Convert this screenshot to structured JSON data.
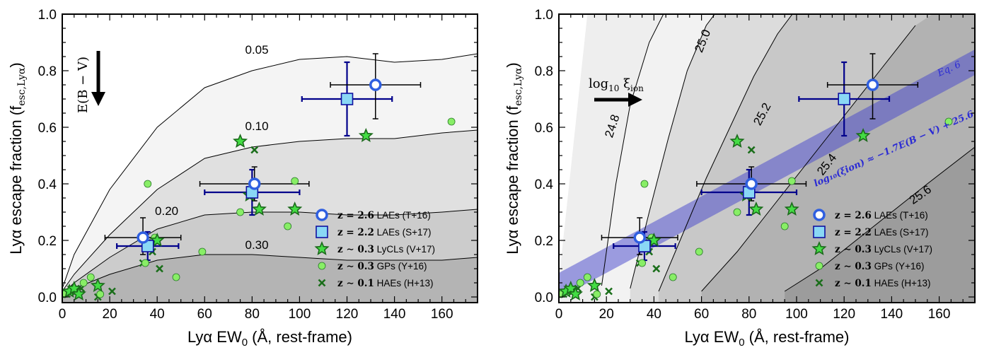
{
  "colors": {
    "laes_t16": "#2f5fe0",
    "laes_s17_fill": "#8ad8f5",
    "laes_s17_edge": "#1010a0",
    "lycl": "#44dd44",
    "gp": "#88ee66",
    "hae": "#1a6e1a",
    "band": "#4444cc",
    "band_text": "#2a2ad4",
    "err_t16": "#000000",
    "err_s17": "#00008b"
  },
  "chart_data": [
    {
      "type": "scatter",
      "panel": "left",
      "xlabel": "Lyα EW",
      "xlabel_sub": "0",
      "xlabel_suffix": " (Å, rest-frame)",
      "ylabel": "Lyα escape fraction (f",
      "ylabel_sub": "esc,Lyα",
      "ylabel_suffix": ")",
      "xlim": [
        0,
        175
      ],
      "ylim": [
        -0.02,
        1.0
      ],
      "xticks": [
        "0",
        "20",
        "40",
        "60",
        "80",
        "100",
        "120",
        "140",
        "160"
      ],
      "yticks": [
        "0.0",
        "0.2",
        "0.4",
        "0.6",
        "0.8",
        "1.0"
      ],
      "annotation": "E(B − V)",
      "contours": [
        {
          "label": "0.05",
          "x": [
            0,
            5,
            20,
            40,
            60,
            80,
            100,
            120,
            140,
            160,
            175
          ],
          "y": [
            0.03,
            0.15,
            0.38,
            0.6,
            0.74,
            0.8,
            0.84,
            0.85,
            0.83,
            0.84,
            0.86
          ]
        },
        {
          "label": "0.10",
          "x": [
            0,
            5,
            20,
            40,
            60,
            80,
            100,
            120,
            140,
            160,
            175
          ],
          "y": [
            0.02,
            0.08,
            0.22,
            0.38,
            0.49,
            0.53,
            0.55,
            0.56,
            0.56,
            0.58,
            0.59
          ]
        },
        {
          "label": "0.20",
          "x": [
            0,
            5,
            20,
            40,
            60,
            80,
            100,
            120,
            140,
            160,
            175
          ],
          "y": [
            0.01,
            0.05,
            0.14,
            0.24,
            0.29,
            0.3,
            0.3,
            0.29,
            0.29,
            0.3,
            0.31
          ]
        },
        {
          "label": "0.30",
          "x": [
            0,
            5,
            20,
            40,
            60,
            80,
            100,
            120,
            140,
            160,
            175
          ],
          "y": [
            0.005,
            0.03,
            0.08,
            0.13,
            0.15,
            0.15,
            0.14,
            0.13,
            0.13,
            0.13,
            0.14
          ]
        }
      ],
      "contour_labels": [
        {
          "text": "0.05",
          "x": 82,
          "y": 0.86
        },
        {
          "text": "0.10",
          "x": 82,
          "y": 0.59
        },
        {
          "text": "0.20",
          "x": 44,
          "y": 0.29
        },
        {
          "text": "0.30",
          "x": 82,
          "y": 0.17
        }
      ]
    },
    {
      "type": "scatter",
      "panel": "right",
      "xlabel": "Lyα EW",
      "xlabel_sub": "0",
      "xlabel_suffix": " (Å, rest-frame)",
      "ylabel": "Lyα escape fraction (f",
      "ylabel_sub": "esc,Lyα",
      "ylabel_suffix": ")",
      "xlim": [
        0,
        175
      ],
      "ylim": [
        -0.02,
        1.0
      ],
      "xticks": [
        "0",
        "20",
        "40",
        "60",
        "80",
        "100",
        "120",
        "140",
        "160"
      ],
      "yticks": [
        "0.0",
        "0.2",
        "0.4",
        "0.6",
        "0.8",
        "1.0"
      ],
      "annotation": "log",
      "annotation_sub": "10",
      "annotation_suffix": " ξ",
      "annotation_sub2": "ion",
      "band_label": "Eq. 6",
      "band_formula": "log₁₀(ξion) ≈ −1.7E(B − V) + 25.6",
      "contours": [
        {
          "label": "24.8",
          "x": [
            18,
            24,
            30,
            38,
            44,
            50
          ],
          "y": [
            0.04,
            0.4,
            0.68,
            0.9,
            1.0,
            1.05
          ]
        },
        {
          "label": "25.0",
          "x": [
            30,
            38,
            46,
            54,
            62,
            70
          ],
          "y": [
            0.03,
            0.3,
            0.56,
            0.8,
            0.96,
            1.05
          ]
        },
        {
          "label": "25.2",
          "x": [
            42,
            52,
            62,
            72,
            82,
            92,
            100
          ],
          "y": [
            0.02,
            0.22,
            0.42,
            0.6,
            0.78,
            0.93,
            1.02
          ]
        },
        {
          "label": "25.4",
          "x": [
            60,
            75,
            90,
            105,
            120,
            135,
            150
          ],
          "y": [
            0.02,
            0.16,
            0.32,
            0.48,
            0.64,
            0.8,
            0.96
          ]
        },
        {
          "label": "25.6",
          "x": [
            95,
            110,
            125,
            140,
            155,
            175
          ],
          "y": [
            0.02,
            0.1,
            0.2,
            0.3,
            0.4,
            0.53
          ]
        }
      ],
      "contour_labels": [
        {
          "text": "24.8",
          "x": 24,
          "y": 0.6,
          "rot": -72
        },
        {
          "text": "25.0",
          "x": 62,
          "y": 0.9,
          "rot": -68
        },
        {
          "text": "25.2",
          "x": 87,
          "y": 0.64,
          "rot": -62
        },
        {
          "text": "25.4",
          "x": 114,
          "y": 0.46,
          "rot": -52
        },
        {
          "text": "25.6",
          "x": 153,
          "y": 0.35,
          "rot": -35
        }
      ],
      "band": {
        "x": [
          0,
          175
        ],
        "y_center": [
          0.04,
          0.83
        ],
        "half_width": 0.045
      }
    }
  ],
  "series": {
    "laes_t16": {
      "name": "z = 2.6 LAEs (T+16)",
      "points": [
        {
          "x": 34,
          "y": 0.21,
          "xerr": 16,
          "yerr": [
            0.06,
            0.07
          ]
        },
        {
          "x": 81,
          "y": 0.4,
          "xerr": 23,
          "yerr": [
            0.06,
            0.06
          ]
        },
        {
          "x": 132,
          "y": 0.75,
          "xerr": 19,
          "yerr": [
            0.12,
            0.11
          ]
        }
      ]
    },
    "laes_s17": {
      "name": "z = 2.2 LAEs (S+17)",
      "points": [
        {
          "x": 36,
          "y": 0.18,
          "xerr": 13,
          "yerr": [
            0.05,
            0.05
          ]
        },
        {
          "x": 80,
          "y": 0.37,
          "xerr": 20,
          "yerr": [
            0.08,
            0.08
          ]
        },
        {
          "x": 120,
          "y": 0.7,
          "xerr": 19,
          "yerr": [
            0.13,
            0.13
          ]
        }
      ]
    },
    "lycls": {
      "name": "z ∼ 0.3 LyCLs (V+17)",
      "points": [
        {
          "x": 3,
          "y": 0.02
        },
        {
          "x": 5,
          "y": 0.03
        },
        {
          "x": 7,
          "y": 0.01
        },
        {
          "x": 15,
          "y": 0.04
        },
        {
          "x": 37,
          "y": 0.18
        },
        {
          "x": 40,
          "y": 0.2
        },
        {
          "x": 75,
          "y": 0.55
        },
        {
          "x": 79,
          "y": 0.36
        },
        {
          "x": 83,
          "y": 0.31
        },
        {
          "x": 98,
          "y": 0.31
        },
        {
          "x": 128,
          "y": 0.57
        }
      ]
    },
    "gps": {
      "name": "z ∼ 0.3 GPs (Y+16)",
      "points": [
        {
          "x": 1,
          "y": 0.01
        },
        {
          "x": 9,
          "y": 0.05
        },
        {
          "x": 12,
          "y": 0.07
        },
        {
          "x": 16,
          "y": 0.01
        },
        {
          "x": 35,
          "y": 0.12
        },
        {
          "x": 36,
          "y": 0.4
        },
        {
          "x": 39,
          "y": 0.21
        },
        {
          "x": 48,
          "y": 0.07
        },
        {
          "x": 59,
          "y": 0.16
        },
        {
          "x": 75,
          "y": 0.3
        },
        {
          "x": 95,
          "y": 0.25
        },
        {
          "x": 98,
          "y": 0.41
        },
        {
          "x": 164,
          "y": 0.62
        }
      ]
    },
    "haes": {
      "name": "z ∼ 0.1 HAEs (H+13)",
      "points": [
        {
          "x": 2,
          "y": 0.01
        },
        {
          "x": 6,
          "y": 0.02
        },
        {
          "x": 8,
          "y": 0.03
        },
        {
          "x": 15,
          "y": 0.0
        },
        {
          "x": 21,
          "y": 0.02
        },
        {
          "x": 34,
          "y": 0.12
        },
        {
          "x": 38,
          "y": 0.16
        },
        {
          "x": 41,
          "y": 0.1
        },
        {
          "x": 79,
          "y": 0.38
        },
        {
          "x": 81,
          "y": 0.52
        }
      ]
    }
  },
  "legend": [
    {
      "key": "laes_t16",
      "z": "z = 2.6",
      "label": " LAEs (T+16)"
    },
    {
      "key": "laes_s17",
      "z": "z = 2.2",
      "label": " LAEs (S+17)"
    },
    {
      "key": "lycls",
      "z": "z ∼ 0.3",
      "label": " LyCLs (V+17)"
    },
    {
      "key": "gps",
      "z": "z ∼ 0.3",
      "label": " GPs (Y+16)"
    },
    {
      "key": "haes",
      "z": "z ∼ 0.1",
      "label": " HAEs (H+13)"
    }
  ]
}
